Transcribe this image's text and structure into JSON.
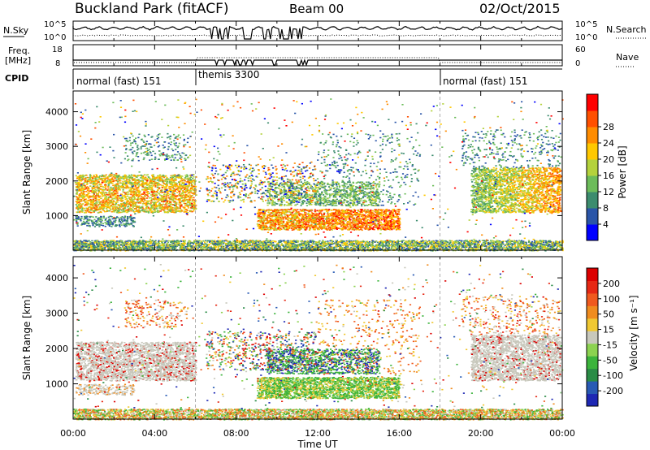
{
  "header": {
    "title": "Buckland Park (fitACF)",
    "beam": "Beam 00",
    "date": "02/Oct/2015"
  },
  "nsky_panel": {
    "left_label": "N.Sky",
    "right_label": "N.Search",
    "left_ticks": [
      "10^5",
      "10^0"
    ],
    "right_ticks": [
      "10^5",
      "10^0"
    ]
  },
  "freq_panel": {
    "left_label_1": "Freq.",
    "left_label_2": "[MHz]",
    "right_label": "Nave",
    "left_ticks": [
      "18",
      "8"
    ],
    "right_ticks": [
      "60",
      "0"
    ]
  },
  "cpid": {
    "label": "CPID",
    "segments": [
      {
        "text": "normal (fast) 151",
        "start_hour": 0
      },
      {
        "text": "themis 3300",
        "start_hour": 6
      },
      {
        "text": "normal (fast) 151",
        "start_hour": 18
      }
    ]
  },
  "chart_data": [
    {
      "type": "heatmap",
      "ylabel": "Slant Range [km]",
      "xlim": [
        0,
        24
      ],
      "ylim": [
        0,
        4600
      ],
      "yticks": [
        1000,
        2000,
        3000,
        4000
      ],
      "colorbar": {
        "label": "Power [dB]",
        "ticks": [
          4,
          8,
          12,
          16,
          20,
          24,
          28
        ],
        "colors": [
          "#0000ff",
          "#2a55a8",
          "#3c8c6e",
          "#6cbc5a",
          "#b4d23c",
          "#ffc800",
          "#ff8c00",
          "#ff5000",
          "#ff0000"
        ]
      }
    },
    {
      "type": "heatmap",
      "ylabel": "Slant Range [km]",
      "xlabel": "Time UT",
      "xlim": [
        0,
        24
      ],
      "ylim": [
        0,
        4600
      ],
      "yticks": [
        1000,
        2000,
        3000,
        4000
      ],
      "xtick_labels": [
        "00:00",
        "04:00",
        "08:00",
        "12:00",
        "16:00",
        "20:00",
        "00:00"
      ],
      "colorbar": {
        "label": "Velocity [m s⁻¹]",
        "ticks": [
          "200",
          "100",
          "50",
          "15",
          "-15",
          "-50",
          "-100",
          "-200"
        ],
        "colors": [
          "#1e28b4",
          "#285ab4",
          "#2a8c46",
          "#3cb43c",
          "#8cd250",
          "#c8c8bc",
          "#f0c832",
          "#f08c1e",
          "#f05a1e",
          "#e62814",
          "#dc0000"
        ]
      }
    }
  ]
}
